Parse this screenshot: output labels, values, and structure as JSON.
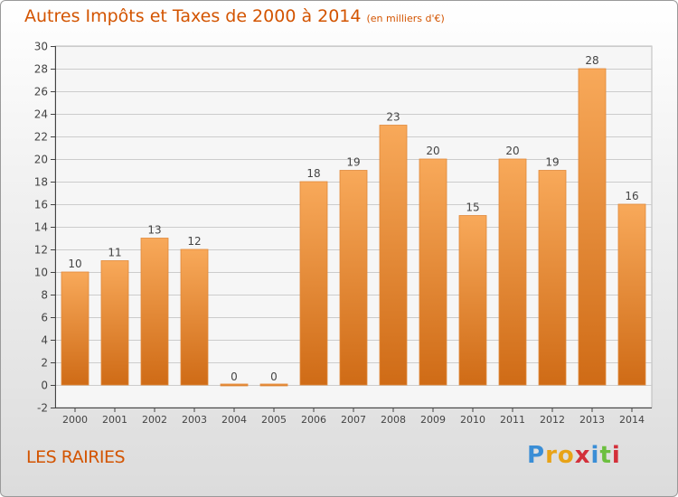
{
  "chart_title": "Autres Impôts et Taxes de 2000 à 2014",
  "chart_subtitle": "(en milliers d'€)",
  "place_name": "LES RAIRIES",
  "brand_logo": "Proxiti",
  "colors": {
    "title": "#d35400",
    "bar_top": "#f8a95a",
    "bar_bottom": "#cf6b16",
    "bar_stroke": "#e0893a",
    "grid": "#cccccc",
    "axis": "#444444",
    "label": "#444444"
  },
  "chart_data": {
    "type": "bar",
    "title": "Autres Impôts et Taxes de 2000 à 2014",
    "xlabel": "",
    "ylabel": "",
    "categories": [
      "2000",
      "2001",
      "2002",
      "2003",
      "2004",
      "2005",
      "2006",
      "2007",
      "2008",
      "2009",
      "2010",
      "2011",
      "2012",
      "2013",
      "2014"
    ],
    "values": [
      10,
      11,
      13,
      12,
      0,
      0,
      18,
      19,
      23,
      20,
      15,
      20,
      19,
      28,
      16
    ],
    "ylim": [
      -2,
      30
    ],
    "yticks": [
      -2,
      0,
      2,
      4,
      6,
      8,
      10,
      12,
      14,
      16,
      18,
      20,
      22,
      24,
      26,
      28,
      30
    ],
    "grid": true,
    "data_labels": true
  }
}
